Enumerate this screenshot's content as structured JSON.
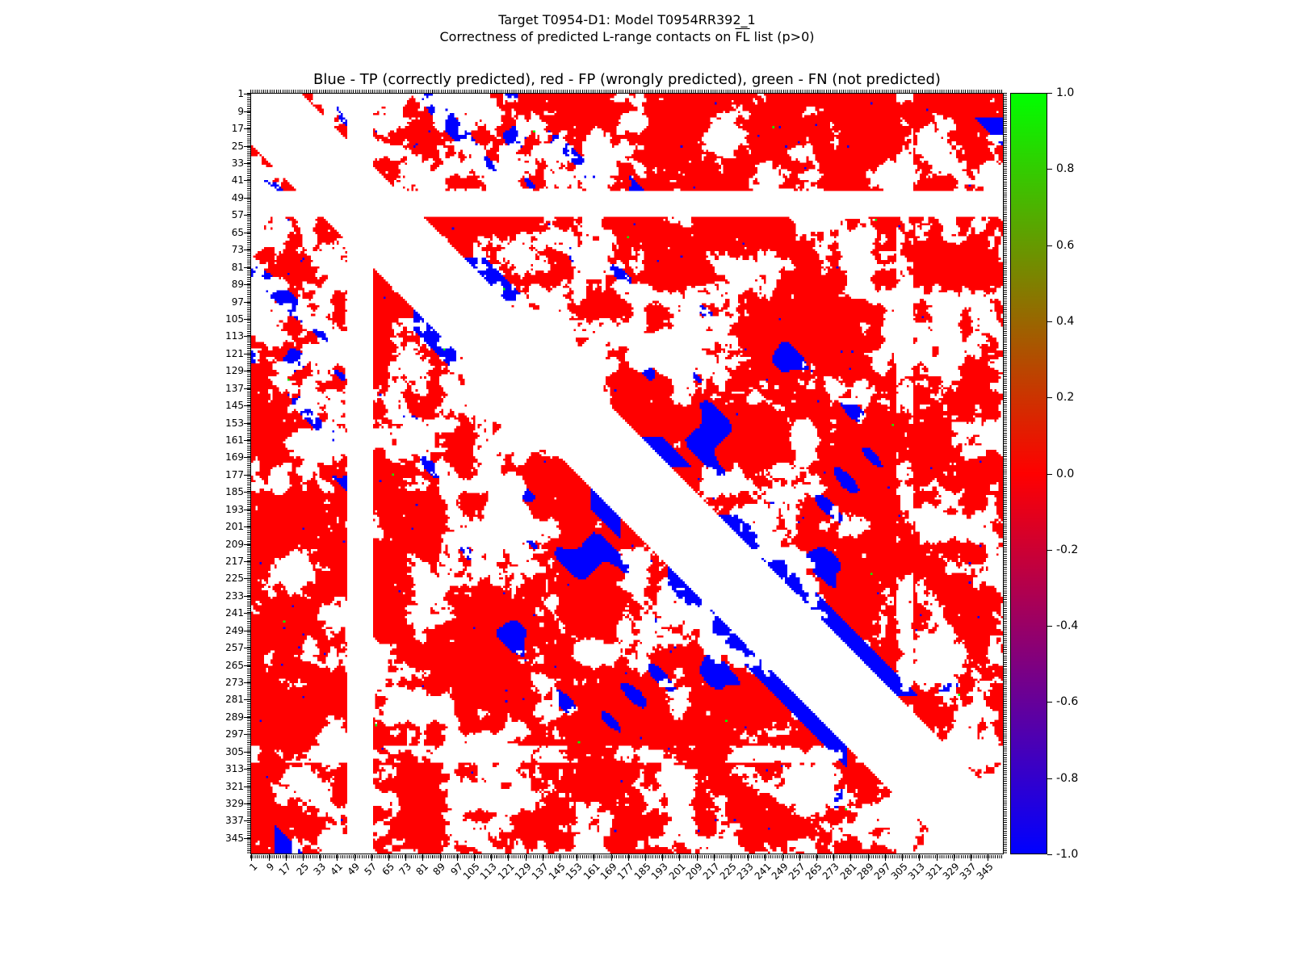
{
  "figure": {
    "title_line1": "Target T0954-D1: Model T0954RR392_1",
    "title_line2_pre": "Correctness of predicted L-range contacts on ",
    "title_line2_overlined": "FL",
    "title_line2_post": " list (p>0)",
    "axes_title": "Blue - TP (correctly predicted), red - FP (wrongly predicted), green - FN (not predicted)"
  },
  "chart_data": {
    "type": "heatmap",
    "subtype": "protein-contact-map-correctness",
    "title": "Target T0954-D1: Model T0954RR392_1 — Correctness of predicted L-range contacts on FL list (p>0)",
    "legend_text": "Blue - TP (correctly predicted), red - FP (wrongly predicted), green - FN (not predicted)",
    "classes": {
      "tp": {
        "label": "TP (correctly predicted)",
        "color": "#0000ff"
      },
      "fp": {
        "label": "FP (wrongly predicted)",
        "color": "#ff0000"
      },
      "fn": {
        "label": "FN (not predicted)",
        "color": "#00ff00"
      }
    },
    "background_color": "#ffffff",
    "x_axis": {
      "ticks": [
        1,
        9,
        17,
        25,
        33,
        41,
        49,
        57,
        65,
        73,
        81,
        89,
        97,
        105,
        113,
        121,
        129,
        137,
        145,
        153,
        161,
        169,
        177,
        185,
        193,
        201,
        209,
        217,
        225,
        233,
        241,
        249,
        257,
        265,
        273,
        281,
        289,
        297,
        305,
        313,
        321,
        329,
        337,
        345
      ],
      "range": [
        1,
        352
      ],
      "tick_rotation_deg": -45
    },
    "y_axis": {
      "ticks": [
        1,
        9,
        17,
        25,
        33,
        41,
        49,
        57,
        65,
        73,
        81,
        89,
        97,
        105,
        113,
        121,
        129,
        137,
        145,
        153,
        161,
        169,
        177,
        185,
        193,
        201,
        209,
        217,
        225,
        233,
        241,
        249,
        257,
        265,
        273,
        281,
        289,
        297,
        305,
        313,
        321,
        329,
        337,
        345
      ],
      "range": [
        1,
        352
      ]
    },
    "colorbar": {
      "min": -1.0,
      "max": 1.0,
      "ticks": [
        "1.0",
        "0.8",
        "0.6",
        "0.4",
        "0.2",
        "0.0",
        "-0.2",
        "-0.4",
        "-0.6",
        "-0.8",
        "-1.0"
      ],
      "gradient_bottom_to_top": [
        "#0000ff",
        "#ff0000",
        "#00ff00"
      ]
    },
    "pattern": {
      "n": 352,
      "seed": 1337,
      "min_separation": 24,
      "fp_threshold": 0.47,
      "white_bands": [
        [
          46,
          57,
          1.0
        ],
        [
          303,
          310,
          0.55
        ]
      ],
      "tp_edge_band": [
        24,
        33
      ],
      "tp_edge_threshold": 0.6,
      "tp_diag_threshold": 0.78,
      "tp_corner_separation": 328,
      "tp_speckle_density": 0.002,
      "fn_density": 0.00012
    }
  }
}
